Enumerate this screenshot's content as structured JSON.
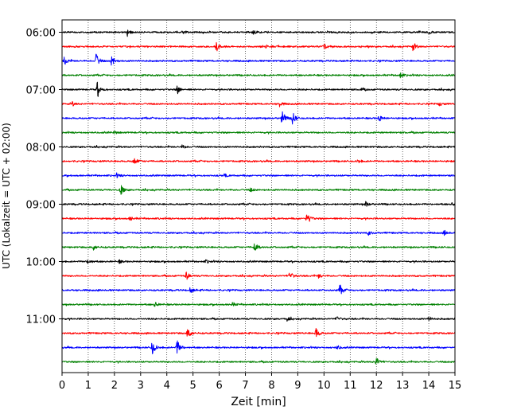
{
  "chart_data": {
    "type": "line",
    "title": "",
    "xlabel": "Zeit  [min]",
    "ylabel": "UTC (Lokalzeit = UTC + 02:00)",
    "xlim": [
      0,
      15
    ],
    "x_ticks": [
      "0",
      "1",
      "2",
      "3",
      "4",
      "5",
      "6",
      "7",
      "8",
      "9",
      "10",
      "11",
      "12",
      "13",
      "14",
      "15"
    ],
    "y_tick_labels": [
      "06:00",
      "07:00",
      "08:00",
      "09:00",
      "10:00",
      "11:00"
    ],
    "grid": "vertical dotted at each minute",
    "line_colors": [
      "#000000",
      "#ff0000",
      "#0000ff",
      "#008000"
    ],
    "traces": [
      {
        "start": "06:00",
        "events": [
          [
            2.5,
            0.35
          ],
          [
            4.6,
            0.25
          ],
          [
            7.3,
            0.25
          ],
          [
            14.0,
            0.2
          ]
        ]
      },
      {
        "start": "06:15",
        "events": [
          [
            5.9,
            0.55
          ],
          [
            7.8,
            0.2
          ],
          [
            10.0,
            0.4
          ],
          [
            13.4,
            0.55
          ]
        ]
      },
      {
        "start": "06:30",
        "events": [
          [
            0.1,
            0.6
          ],
          [
            1.3,
            0.95
          ],
          [
            1.9,
            0.7
          ]
        ]
      },
      {
        "start": "06:45",
        "events": [
          [
            12.9,
            0.35
          ]
        ]
      },
      {
        "start": "07:00",
        "events": [
          [
            1.35,
            1.0
          ],
          [
            4.4,
            0.55
          ],
          [
            11.4,
            0.2
          ]
        ]
      },
      {
        "start": "07:15",
        "events": [
          [
            0.4,
            0.25
          ],
          [
            8.3,
            0.35
          ],
          [
            14.4,
            0.25
          ]
        ]
      },
      {
        "start": "07:30",
        "events": [
          [
            8.4,
            1.0
          ],
          [
            8.8,
            0.9
          ],
          [
            12.1,
            0.45
          ]
        ]
      },
      {
        "start": "07:45",
        "events": [
          [
            2.0,
            0.15
          ]
        ]
      },
      {
        "start": "08:00",
        "events": [
          [
            4.6,
            0.25
          ]
        ]
      },
      {
        "start": "08:15",
        "events": [
          [
            2.75,
            0.55
          ],
          [
            11.3,
            0.25
          ]
        ]
      },
      {
        "start": "08:30",
        "events": [
          [
            2.1,
            0.25
          ],
          [
            6.2,
            0.15
          ]
        ]
      },
      {
        "start": "08:45",
        "events": [
          [
            2.25,
            0.65
          ],
          [
            7.2,
            0.25
          ]
        ]
      },
      {
        "start": "09:00",
        "events": [
          [
            11.6,
            0.35
          ],
          [
            14.9,
            0.2
          ]
        ]
      },
      {
        "start": "09:15",
        "events": [
          [
            2.6,
            0.25
          ],
          [
            9.35,
            0.85
          ]
        ]
      },
      {
        "start": "09:30",
        "events": [
          [
            11.7,
            0.25
          ],
          [
            14.6,
            0.3
          ]
        ]
      },
      {
        "start": "09:45",
        "events": [
          [
            1.2,
            0.35
          ],
          [
            7.35,
            0.7
          ]
        ]
      },
      {
        "start": "10:00",
        "events": [
          [
            1.0,
            0.4
          ],
          [
            2.2,
            0.2
          ],
          [
            5.5,
            0.2
          ]
        ]
      },
      {
        "start": "10:15",
        "events": [
          [
            4.75,
            0.5
          ],
          [
            8.7,
            0.55
          ],
          [
            9.8,
            0.3
          ]
        ]
      },
      {
        "start": "10:30",
        "events": [
          [
            4.9,
            0.35
          ],
          [
            10.6,
            0.75
          ]
        ]
      },
      {
        "start": "10:45",
        "events": [
          [
            3.55,
            0.35
          ],
          [
            6.5,
            0.25
          ]
        ]
      },
      {
        "start": "11:00",
        "events": [
          [
            8.6,
            0.25
          ],
          [
            10.5,
            0.25
          ],
          [
            14.0,
            0.25
          ]
        ]
      },
      {
        "start": "11:15",
        "events": [
          [
            4.8,
            0.75
          ],
          [
            9.7,
            0.7
          ]
        ]
      },
      {
        "start": "11:30",
        "events": [
          [
            3.45,
            1.0
          ],
          [
            4.4,
            1.0
          ],
          [
            10.5,
            0.3
          ]
        ]
      },
      {
        "start": "11:45",
        "events": [
          [
            12.0,
            0.6
          ]
        ]
      }
    ]
  }
}
